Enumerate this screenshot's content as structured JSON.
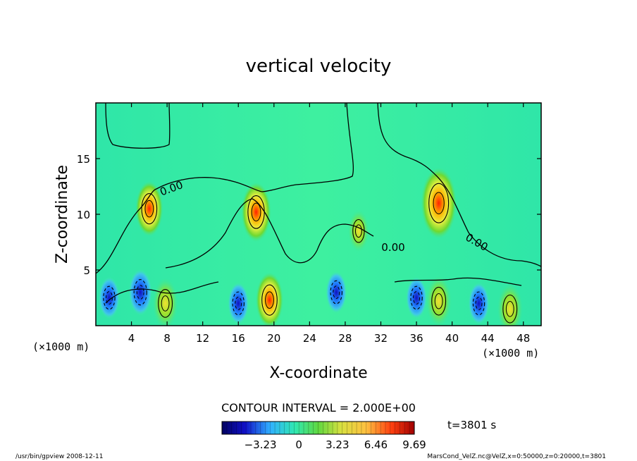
{
  "chart_data": {
    "type": "heatmap",
    "title": "vertical velocity",
    "xlabel": "X-coordinate",
    "ylabel": "Z-coordinate",
    "x_unit": "(×1000 m)",
    "y_unit": "(×1000 m)",
    "xlim": [
      0,
      50
    ],
    "ylim": [
      0,
      20
    ],
    "x_ticks": [
      4,
      8,
      12,
      16,
      20,
      24,
      28,
      32,
      36,
      40,
      44,
      48
    ],
    "y_ticks": [
      5,
      10,
      15
    ],
    "contour_interval_text": "CONTOUR INTERVAL = 2.000E+00",
    "contour_labels": [
      "0.00",
      "0.00",
      "0.00"
    ],
    "time_label": "t=3801 s",
    "colorbar": {
      "tick_values": [
        -3.23,
        0,
        3.23,
        6.46,
        9.69
      ],
      "tick_labels": [
        "−3.23",
        "0",
        "3.23",
        "6.46",
        "9.69"
      ],
      "range": [
        -6.46,
        9.69
      ]
    },
    "features": [
      {
        "kind": "updraft",
        "x": 6,
        "z": 10.5,
        "w": 6
      },
      {
        "kind": "updraft",
        "x": 18,
        "z": 10.2,
        "w": 7
      },
      {
        "kind": "updraft",
        "x": 29.5,
        "z": 8.5,
        "w": 3
      },
      {
        "kind": "updraft",
        "x": 38.5,
        "z": 11,
        "w": 9.6
      },
      {
        "kind": "updraft",
        "x": 7.8,
        "z": 2,
        "w": 5
      },
      {
        "kind": "updraft",
        "x": 19.5,
        "z": 2.3,
        "w": 6
      },
      {
        "kind": "updraft",
        "x": 38.5,
        "z": 2.2,
        "w": 5
      },
      {
        "kind": "updraft",
        "x": 46.5,
        "z": 1.5,
        "w": 5
      },
      {
        "kind": "downdraft",
        "x": 1.5,
        "z": 2.5,
        "w": -3
      },
      {
        "kind": "downdraft",
        "x": 5,
        "z": 3,
        "w": -4
      },
      {
        "kind": "downdraft",
        "x": 16,
        "z": 2,
        "w": -3
      },
      {
        "kind": "downdraft",
        "x": 27,
        "z": 3,
        "w": -3
      },
      {
        "kind": "downdraft",
        "x": 36,
        "z": 2.5,
        "w": -3
      },
      {
        "kind": "downdraft",
        "x": 43,
        "z": 2,
        "w": -3
      }
    ],
    "grid": false,
    "legend": "none"
  },
  "footer": {
    "left": "/usr/bin/gpview   2008-12-11",
    "right": "MarsCond_VelZ.nc@VelZ,x=0:50000,z=0:20000,t=3801"
  }
}
